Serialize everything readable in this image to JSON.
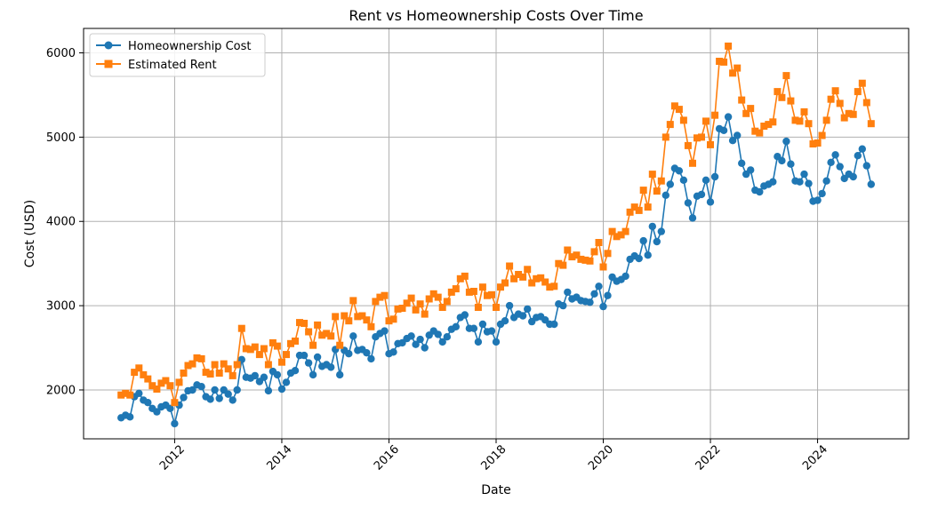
{
  "chart_data": {
    "type": "line",
    "title": "Rent vs Homeownership Costs Over Time",
    "xlabel": "Date",
    "ylabel": "Cost (USD)",
    "xlim": [
      2010.3,
      2025.7
    ],
    "ylim": [
      1420,
      6290
    ],
    "x_ticks": [
      {
        "value": 2012,
        "label": "2012"
      },
      {
        "value": 2014,
        "label": "2014"
      },
      {
        "value": 2016,
        "label": "2016"
      },
      {
        "value": 2018,
        "label": "2018"
      },
      {
        "value": 2020,
        "label": "2020"
      },
      {
        "value": 2022,
        "label": "2022"
      },
      {
        "value": 2024,
        "label": "2024"
      }
    ],
    "y_ticks": [
      {
        "value": 2000,
        "label": "2000"
      },
      {
        "value": 3000,
        "label": "3000"
      },
      {
        "value": 4000,
        "label": "4000"
      },
      {
        "value": 5000,
        "label": "5000"
      },
      {
        "value": 6000,
        "label": "6000"
      }
    ],
    "grid": true,
    "legend_position": "upper-left",
    "x_start_year": 2011,
    "x_step_years": 0.08333333,
    "series": [
      {
        "name": "Homeownership Cost",
        "color": "#1f77b4",
        "marker": "circle",
        "values": [
          1670,
          1700,
          1680,
          1920,
          1960,
          1880,
          1850,
          1780,
          1740,
          1800,
          1820,
          1780,
          1600,
          1820,
          1910,
          1990,
          2000,
          2060,
          2040,
          1920,
          1890,
          2000,
          1900,
          2000,
          1950,
          1880,
          2000,
          2360,
          2150,
          2140,
          2170,
          2100,
          2150,
          1990,
          2220,
          2180,
          2010,
          2090,
          2200,
          2230,
          2410,
          2410,
          2320,
          2180,
          2390,
          2280,
          2300,
          2270,
          2480,
          2180,
          2470,
          2430,
          2640,
          2470,
          2480,
          2440,
          2370,
          2630,
          2670,
          2700,
          2430,
          2450,
          2550,
          2560,
          2610,
          2640,
          2540,
          2600,
          2500,
          2650,
          2700,
          2660,
          2570,
          2630,
          2720,
          2750,
          2860,
          2890,
          2730,
          2730,
          2570,
          2780,
          2690,
          2700,
          2570,
          2780,
          2820,
          3000,
          2860,
          2900,
          2880,
          2960,
          2810,
          2860,
          2870,
          2830,
          2780,
          2780,
          3020,
          3000,
          3160,
          3080,
          3100,
          3060,
          3050,
          3040,
          3140,
          3230,
          2990,
          3120,
          3340,
          3290,
          3310,
          3350,
          3550,
          3590,
          3560,
          3770,
          3600,
          3940,
          3760,
          3880,
          4310,
          4440,
          4630,
          4600,
          4490,
          4220,
          4040,
          4300,
          4320,
          4490,
          4230,
          4530,
          5100,
          5080,
          5240,
          4960,
          5020,
          4690,
          4560,
          4610,
          4370,
          4350,
          4420,
          4440,
          4470,
          4770,
          4720,
          4950,
          4680,
          4480,
          4470,
          4560,
          4450,
          4240,
          4250,
          4330,
          4480,
          4700,
          4790,
          4650,
          4510,
          4560,
          4530,
          4780,
          4860,
          4660,
          4440
        ]
      },
      {
        "name": "Estimated Rent",
        "color": "#ff7f0e",
        "marker": "square",
        "values": [
          1940,
          1960,
          1940,
          2210,
          2260,
          2180,
          2130,
          2050,
          2010,
          2080,
          2110,
          2050,
          1850,
          2090,
          2200,
          2290,
          2310,
          2380,
          2370,
          2210,
          2190,
          2300,
          2200,
          2310,
          2250,
          2170,
          2300,
          2730,
          2490,
          2480,
          2510,
          2420,
          2490,
          2300,
          2560,
          2520,
          2330,
          2420,
          2550,
          2580,
          2800,
          2790,
          2690,
          2530,
          2770,
          2650,
          2670,
          2640,
          2870,
          2530,
          2880,
          2820,
          3060,
          2870,
          2880,
          2830,
          2750,
          3050,
          3100,
          3120,
          2820,
          2840,
          2960,
          2970,
          3030,
          3090,
          2950,
          3020,
          2900,
          3080,
          3140,
          3100,
          2980,
          3050,
          3160,
          3200,
          3320,
          3350,
          3160,
          3170,
          2980,
          3220,
          3120,
          3130,
          2980,
          3220,
          3270,
          3470,
          3320,
          3370,
          3340,
          3430,
          3270,
          3320,
          3330,
          3280,
          3220,
          3230,
          3500,
          3480,
          3660,
          3580,
          3600,
          3550,
          3540,
          3530,
          3640,
          3750,
          3460,
          3620,
          3880,
          3820,
          3840,
          3880,
          4110,
          4170,
          4130,
          4370,
          4170,
          4560,
          4360,
          4480,
          5000,
          5150,
          5370,
          5330,
          5200,
          4900,
          4690,
          4990,
          5000,
          5190,
          4910,
          5260,
          5900,
          5890,
          6080,
          5760,
          5820,
          5440,
          5280,
          5340,
          5070,
          5050,
          5130,
          5150,
          5180,
          5540,
          5470,
          5730,
          5430,
          5200,
          5190,
          5300,
          5160,
          4920,
          4930,
          5020,
          5200,
          5450,
          5550,
          5400,
          5230,
          5280,
          5270,
          5540,
          5640,
          5410,
          5160
        ]
      }
    ]
  }
}
